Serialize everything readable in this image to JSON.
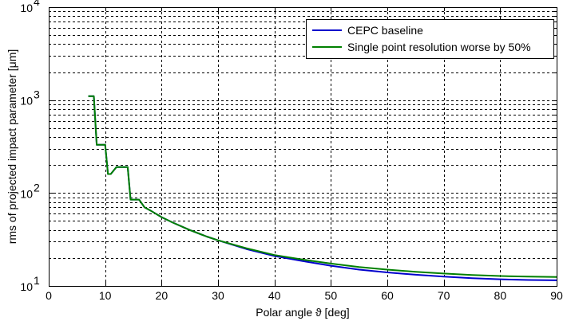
{
  "chart_data": {
    "type": "line",
    "title": "",
    "xlabel": "Polar angle ϑ [deg]",
    "ylabel": "rms of projected impact parameter [μm]",
    "xlim": [
      0,
      90
    ],
    "ylim": [
      10,
      10000
    ],
    "yscale": "log",
    "grid": true,
    "legend_position": "top-right",
    "x_ticks": [
      0,
      10,
      20,
      30,
      40,
      50,
      60,
      70,
      80,
      90
    ],
    "x_tick_labels": [
      "0",
      "10",
      "20",
      "30",
      "40",
      "50",
      "60",
      "70",
      "80",
      "90"
    ],
    "y_ticks": [
      10,
      100,
      1000,
      10000
    ],
    "y_tick_labels": [
      {
        "base": "10",
        "exp": "1"
      },
      {
        "base": "10",
        "exp": "2"
      },
      {
        "base": "10",
        "exp": "3"
      },
      {
        "base": "10",
        "exp": "4"
      }
    ],
    "series": [
      {
        "name": "CEPC baseline",
        "color": "#0000cc",
        "x": [
          7,
          8,
          8.5,
          9,
          10,
          10.5,
          11,
          12,
          13,
          14,
          14.5,
          15,
          16,
          17,
          18,
          20,
          22,
          25,
          28,
          30,
          35,
          40,
          45,
          50,
          55,
          60,
          65,
          70,
          75,
          80,
          85,
          90
        ],
        "y": [
          1100,
          1100,
          330,
          330,
          330,
          160,
          160,
          190,
          190,
          190,
          85,
          85,
          85,
          70,
          65,
          55,
          48,
          40,
          34,
          31,
          25,
          21,
          18.5,
          16.5,
          15,
          14,
          13.2,
          12.6,
          12.1,
          11.8,
          11.6,
          11.5
        ]
      },
      {
        "name": "Single point resolution worse by 50%",
        "color": "#008000",
        "x": [
          7,
          8,
          8.5,
          9,
          10,
          10.5,
          11,
          12,
          13,
          14,
          14.5,
          15,
          16,
          17,
          18,
          20,
          22,
          25,
          28,
          30,
          35,
          40,
          45,
          50,
          55,
          60,
          65,
          70,
          75,
          80,
          85,
          90
        ],
        "y": [
          1100,
          1100,
          330,
          330,
          330,
          160,
          160,
          190,
          190,
          190,
          85,
          85,
          85,
          70,
          65,
          55,
          48,
          40,
          34,
          31,
          25.5,
          21.5,
          19.2,
          17.4,
          16,
          15,
          14.2,
          13.6,
          13.1,
          12.8,
          12.6,
          12.5
        ]
      }
    ]
  }
}
